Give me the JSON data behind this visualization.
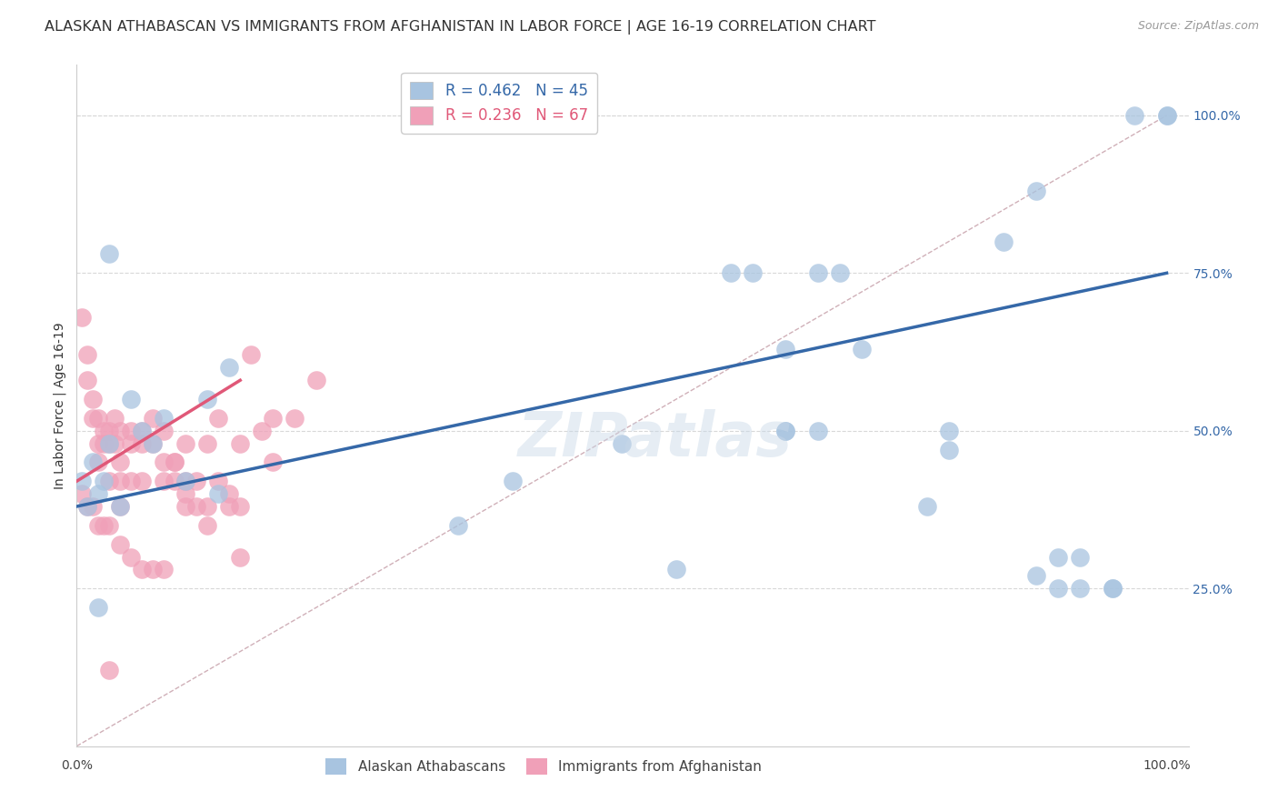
{
  "title": "ALASKAN ATHABASCAN VS IMMIGRANTS FROM AFGHANISTAN IN LABOR FORCE | AGE 16-19 CORRELATION CHART",
  "source": "Source: ZipAtlas.com",
  "ylabel": "In Labor Force | Age 16-19",
  "blue_R": 0.462,
  "blue_N": 45,
  "pink_R": 0.236,
  "pink_N": 67,
  "blue_color": "#a8c4e0",
  "pink_color": "#f0a0b8",
  "blue_line_color": "#3568a8",
  "pink_line_color": "#e05878",
  "diagonal_color": "#d0b0b8",
  "watermark": "ZIPatlas",
  "blue_scatter_x": [
    0.005,
    0.01,
    0.015,
    0.02,
    0.025,
    0.03,
    0.04,
    0.05,
    0.06,
    0.07,
    0.08,
    0.1,
    0.12,
    0.13,
    0.02,
    0.03,
    0.14,
    0.6,
    0.62,
    0.65,
    0.65,
    0.68,
    0.7,
    0.72,
    0.5,
    0.78,
    0.8,
    0.85,
    0.88,
    0.9,
    0.92,
    0.95,
    1.0,
    0.35,
    0.4,
    0.55,
    0.65,
    0.68,
    0.8,
    0.88,
    0.9,
    0.92,
    0.95,
    0.97,
    1.0
  ],
  "blue_scatter_y": [
    0.42,
    0.38,
    0.45,
    0.4,
    0.42,
    0.48,
    0.38,
    0.55,
    0.5,
    0.48,
    0.52,
    0.42,
    0.55,
    0.4,
    0.22,
    0.78,
    0.6,
    0.75,
    0.75,
    0.63,
    0.5,
    0.75,
    0.75,
    0.63,
    0.48,
    0.38,
    0.5,
    0.8,
    0.88,
    0.3,
    0.3,
    0.25,
    1.0,
    0.35,
    0.42,
    0.28,
    0.5,
    0.5,
    0.47,
    0.27,
    0.25,
    0.25,
    0.25,
    1.0,
    1.0
  ],
  "pink_scatter_x": [
    0.005,
    0.01,
    0.01,
    0.015,
    0.015,
    0.02,
    0.02,
    0.02,
    0.025,
    0.025,
    0.03,
    0.03,
    0.03,
    0.035,
    0.035,
    0.04,
    0.04,
    0.04,
    0.04,
    0.05,
    0.05,
    0.05,
    0.06,
    0.06,
    0.06,
    0.07,
    0.07,
    0.08,
    0.08,
    0.08,
    0.09,
    0.09,
    0.1,
    0.1,
    0.1,
    0.11,
    0.11,
    0.12,
    0.12,
    0.13,
    0.13,
    0.14,
    0.15,
    0.15,
    0.16,
    0.17,
    0.18,
    0.18,
    0.2,
    0.22,
    0.005,
    0.01,
    0.015,
    0.02,
    0.025,
    0.03,
    0.04,
    0.05,
    0.06,
    0.07,
    0.08,
    0.09,
    0.1,
    0.12,
    0.14,
    0.15,
    0.03
  ],
  "pink_scatter_y": [
    0.68,
    0.62,
    0.58,
    0.55,
    0.52,
    0.52,
    0.48,
    0.45,
    0.5,
    0.48,
    0.5,
    0.48,
    0.42,
    0.52,
    0.48,
    0.5,
    0.45,
    0.42,
    0.38,
    0.5,
    0.48,
    0.42,
    0.5,
    0.48,
    0.42,
    0.52,
    0.48,
    0.5,
    0.45,
    0.42,
    0.45,
    0.42,
    0.48,
    0.42,
    0.38,
    0.42,
    0.38,
    0.48,
    0.38,
    0.52,
    0.42,
    0.4,
    0.48,
    0.38,
    0.62,
    0.5,
    0.52,
    0.45,
    0.52,
    0.58,
    0.4,
    0.38,
    0.38,
    0.35,
    0.35,
    0.35,
    0.32,
    0.3,
    0.28,
    0.28,
    0.28,
    0.45,
    0.4,
    0.35,
    0.38,
    0.3,
    0.12
  ],
  "blue_line_y_start": 0.38,
  "blue_line_y_end": 0.75,
  "pink_line_x_end": 0.15,
  "pink_line_y_start": 0.42,
  "pink_line_y_end": 0.58,
  "xlim": [
    0.0,
    1.02
  ],
  "ylim": [
    0.0,
    1.08
  ],
  "yticks": [
    0.25,
    0.5,
    0.75,
    1.0
  ],
  "ytick_labels": [
    "25.0%",
    "50.0%",
    "75.0%",
    "100.0%"
  ],
  "background_color": "#ffffff",
  "plot_bg_color": "#ffffff",
  "grid_color": "#d8d8d8",
  "title_fontsize": 11.5,
  "axis_label_fontsize": 10,
  "tick_fontsize": 10,
  "watermark_fontsize": 48,
  "watermark_color": "#c8d8e8",
  "watermark_alpha": 0.45,
  "legend_label1": "Alaskan Athabascans",
  "legend_label2": "Immigrants from Afghanistan"
}
